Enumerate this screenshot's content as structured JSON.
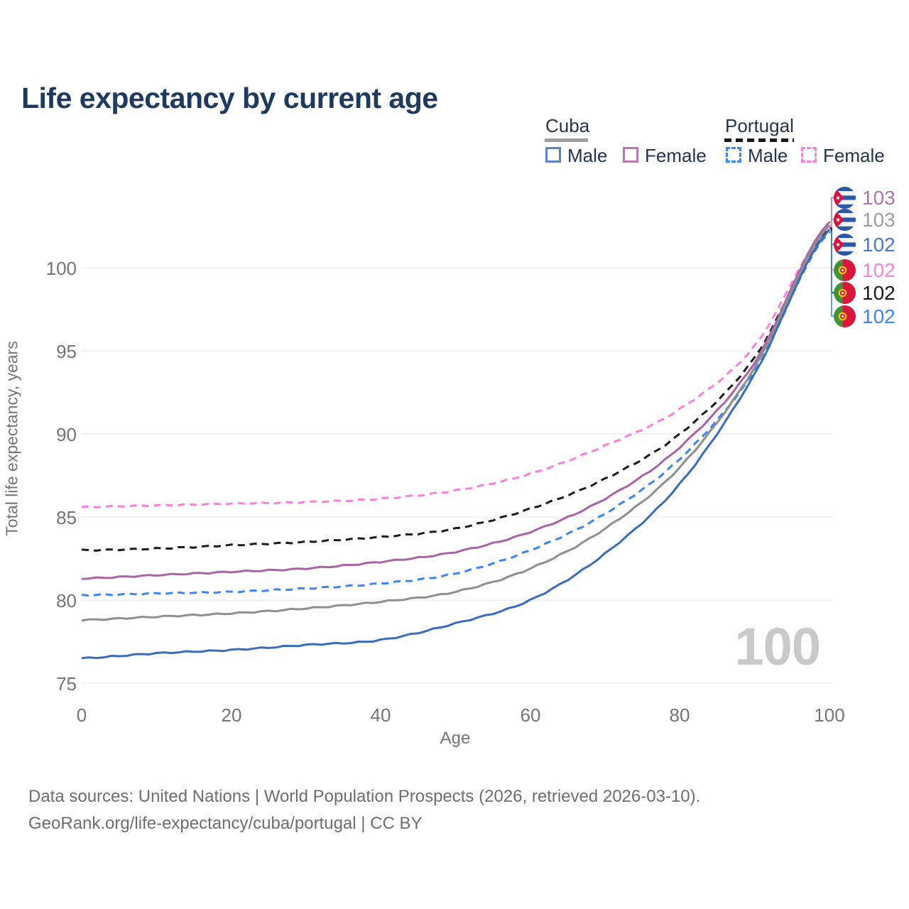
{
  "title": "Life expectancy by current age",
  "legend": {
    "groups": [
      {
        "label": "Cuba",
        "line_style": "solid",
        "key_color": "#9e9e9e"
      },
      {
        "label": "Portugal",
        "line_style": "dashed",
        "key_color": "#1a1a1a"
      }
    ],
    "items": [
      {
        "label": "Male",
        "country": "Cuba",
        "color": "#5b84c4",
        "dash": "solid"
      },
      {
        "label": "Female",
        "country": "Cuba",
        "color": "#b778b0",
        "dash": "solid"
      },
      {
        "label": "Male",
        "country": "Portugal",
        "color": "#3d85f2",
        "dash": "dashed"
      },
      {
        "label": "Female",
        "country": "Portugal",
        "color": "#fa80dc",
        "dash": "dashed"
      }
    ]
  },
  "end_labels": [
    {
      "value": "103",
      "series": "Cuba Female",
      "flag": "cuba",
      "color": "#b573ab"
    },
    {
      "value": "103",
      "series": "Cuba Total",
      "flag": "cuba",
      "color": "#9e9e9e"
    },
    {
      "value": "102",
      "series": "Cuba Male",
      "flag": "cuba",
      "color": "#4a78c8"
    },
    {
      "value": "102",
      "series": "Portugal Female",
      "flag": "portugal",
      "color": "#fa80dc"
    },
    {
      "value": "102",
      "series": "Portugal Total",
      "flag": "portugal",
      "color": "#1a1a1a"
    },
    {
      "value": "102",
      "series": "Portugal Male",
      "flag": "portugal",
      "color": "#3d85f2"
    }
  ],
  "watermark": "100",
  "footer": {
    "line1": "Data sources: United Nations | World Population Prospects (2026, retrieved 2026-03-10).",
    "line2": "GeoRank.org/life-expectancy/cuba/portugal | CC BY"
  },
  "chart_data": {
    "type": "line",
    "title": "Life expectancy by current age",
    "xlabel": "Age",
    "ylabel": "Total life expectancy, years",
    "x_ticks": [
      0,
      20,
      40,
      60,
      80,
      100
    ],
    "y_ticks": [
      75,
      80,
      85,
      90,
      95,
      100
    ],
    "xlim": [
      0,
      100
    ],
    "ylim": [
      74.5,
      103.5
    ],
    "grid": "horizontal",
    "legend_position": "top-right",
    "ages": [
      0,
      10,
      20,
      30,
      40,
      50,
      60,
      70,
      80,
      90,
      100
    ],
    "series": [
      {
        "name": "Portugal Female",
        "country": "Portugal",
        "sex": "Female",
        "style": "dashed",
        "color": "#fa80dc",
        "values": [
          85.6,
          85.7,
          85.8,
          85.9,
          86.1,
          86.6,
          87.6,
          89.3,
          91.5,
          95.3,
          102.5
        ],
        "end_label": "102"
      },
      {
        "name": "Portugal Total",
        "country": "Portugal",
        "sex": "Both",
        "style": "dashed",
        "color": "#1c1c1c",
        "values": [
          83.0,
          83.1,
          83.3,
          83.5,
          83.8,
          84.3,
          85.5,
          87.3,
          90.0,
          94.6,
          102.4
        ],
        "end_label": "102"
      },
      {
        "name": "Portugal Male",
        "country": "Portugal",
        "sex": "Male",
        "style": "dashed",
        "color": "#3d85f2",
        "values": [
          80.3,
          80.4,
          80.5,
          80.7,
          81.0,
          81.6,
          83.0,
          85.2,
          88.5,
          93.8,
          102.15
        ],
        "end_label": "102"
      },
      {
        "name": "Cuba Female",
        "country": "Cuba",
        "sex": "Female",
        "style": "solid",
        "color": "#aa64a5",
        "values": [
          81.3,
          81.5,
          81.7,
          81.9,
          82.3,
          82.9,
          84.1,
          86.1,
          89.2,
          94.3,
          102.75
        ],
        "end_label": "103"
      },
      {
        "name": "Cuba Total",
        "country": "Cuba",
        "sex": "Both",
        "style": "solid",
        "color": "#8f8f8f",
        "values": [
          78.8,
          79.0,
          79.2,
          79.5,
          79.9,
          80.5,
          81.9,
          84.3,
          88.0,
          94.0,
          102.55
        ],
        "end_label": "103"
      },
      {
        "name": "Cuba Male",
        "country": "Cuba",
        "sex": "Male",
        "style": "solid",
        "color": "#3a6db9",
        "values": [
          76.5,
          76.8,
          77.0,
          77.3,
          77.6,
          78.6,
          80.0,
          82.8,
          87.0,
          93.6,
          102.3
        ],
        "end_label": "102"
      }
    ]
  }
}
